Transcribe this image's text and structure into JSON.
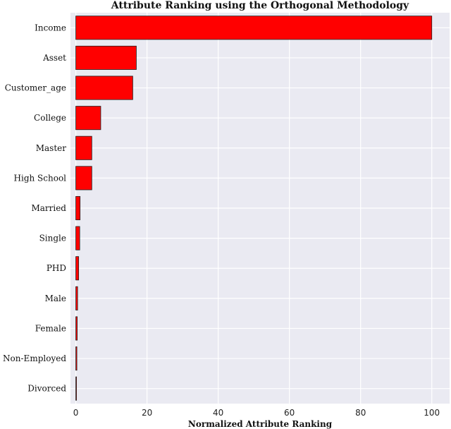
{
  "chart_data": {
    "type": "bar",
    "orientation": "horizontal",
    "title": "Attribute Ranking using the Orthogonal Methodology",
    "xlabel": "Normalized Attribute Ranking",
    "ylabel": "",
    "categories": [
      "Income",
      "Asset",
      "Customer_age",
      "College",
      "Master",
      "High School",
      "Married",
      "Single",
      "PHD",
      "Male",
      "Female",
      "Non-Employed",
      "Divorced"
    ],
    "values": [
      100,
      17,
      16,
      7,
      4.5,
      4.5,
      1.2,
      1.1,
      0.8,
      0.5,
      0.4,
      0.3,
      0.2
    ],
    "xlim": [
      -1.5,
      105
    ],
    "xticks": [
      0,
      20,
      40,
      60,
      80,
      100
    ],
    "grid": true,
    "colors": {
      "bar_fill": "#ff0000",
      "bar_edge": "#222222",
      "plot_background": "#eaeaf2",
      "grid": "#ffffff"
    }
  }
}
